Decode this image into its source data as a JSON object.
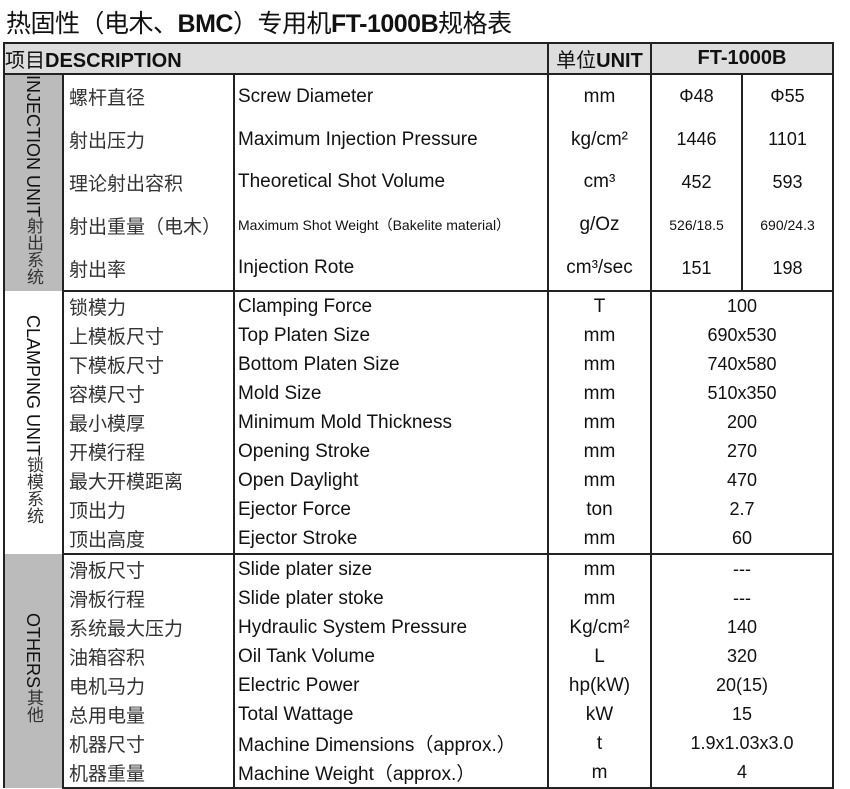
{
  "title": {
    "prefix": "热固性（电木、",
    "bold1": "BMC",
    "mid": "）专用机",
    "bold2": "FT-1000B",
    "suffix": "规格表"
  },
  "header": {
    "desc_cn": "项目",
    "desc_en": "DESCRIPTION",
    "unit_cn": "单位",
    "unit_en": "UNIT",
    "model": "FT-1000B"
  },
  "groups": [
    {
      "cn": "射出系统",
      "en": "INJECTION UNIT",
      "shaded": true,
      "rows": [
        {
          "cn": "螺杆直径",
          "en": "Screw Diameter",
          "unit": "mm",
          "v1": "Φ48",
          "v2": "Φ55"
        },
        {
          "cn": "射出压力",
          "en": "Maximum Injection Pressure",
          "unit": "kg/cm²",
          "v1": "1446",
          "v2": "1101"
        },
        {
          "cn": "理论射出容积",
          "en": "Theoretical Shot Volume",
          "unit": "cm³",
          "v1": "452",
          "v2": "593"
        },
        {
          "cn": "射出重量（电木）",
          "en": "Maximum Shot Weight（Bakelite material）",
          "unit": "g/Oz",
          "v1": "526/18.5",
          "v2": "690/24.3"
        },
        {
          "cn": "射出率",
          "en": "Injection Rote",
          "unit": "cm³/sec",
          "v1": "151",
          "v2": "198"
        }
      ]
    },
    {
      "cn": "锁模系统",
      "en": "CLAMPING UNIT",
      "shaded": false,
      "rows": [
        {
          "cn": "锁模力",
          "en": "Clamping Force",
          "unit": "T",
          "v": "100"
        },
        {
          "cn": "上模板尺寸",
          "en": "Top Platen Size",
          "unit": "mm",
          "v": "690x530"
        },
        {
          "cn": "下模板尺寸",
          "en": "Bottom Platen Size",
          "unit": "mm",
          "v": "740x580"
        },
        {
          "cn": "容模尺寸",
          "en": "Mold Size",
          "unit": "mm",
          "v": "510x350"
        },
        {
          "cn": "最小模厚",
          "en": "Minimum Mold Thickness",
          "unit": "mm",
          "v": "200"
        },
        {
          "cn": "开模行程",
          "en": "Opening Stroke",
          "unit": "mm",
          "v": "270"
        },
        {
          "cn": "最大开模距离",
          "en": "Open Daylight",
          "unit": "mm",
          "v": "470"
        },
        {
          "cn": "顶出力",
          "en": "Ejector Force",
          "unit": "ton",
          "v": "2.7"
        },
        {
          "cn": "顶出高度",
          "en": "Ejector Stroke",
          "unit": "mm",
          "v": "60"
        }
      ]
    },
    {
      "cn": "其他",
      "en": "OTHERS",
      "shaded": true,
      "rows": [
        {
          "cn": "滑板尺寸",
          "en": "Slide plater size",
          "unit": "mm",
          "v": "---"
        },
        {
          "cn": "滑板行程",
          "en": "Slide plater stoke",
          "unit": "mm",
          "v": "---"
        },
        {
          "cn": "系统最大压力",
          "en": "Hydraulic System Pressure",
          "unit": "Kg/cm²",
          "v": "140"
        },
        {
          "cn": "油箱容积",
          "en": "Oil Tank Volume",
          "unit": "L",
          "v": "320"
        },
        {
          "cn": "电机马力",
          "en": "Electric Power",
          "unit": "hp(kW)",
          "v": "20(15)"
        },
        {
          "cn": "总用电量",
          "en": "Total Wattage",
          "unit": "kW",
          "v": "15"
        },
        {
          "cn": "机器尺寸",
          "en": "Machine Dimensions（approx.）",
          "unit": "t",
          "v": "1.9x1.03x3.0"
        },
        {
          "cn": "机器重量",
          "en": "Machine Weight（approx.）",
          "unit": "m",
          "v": "4"
        }
      ]
    }
  ]
}
